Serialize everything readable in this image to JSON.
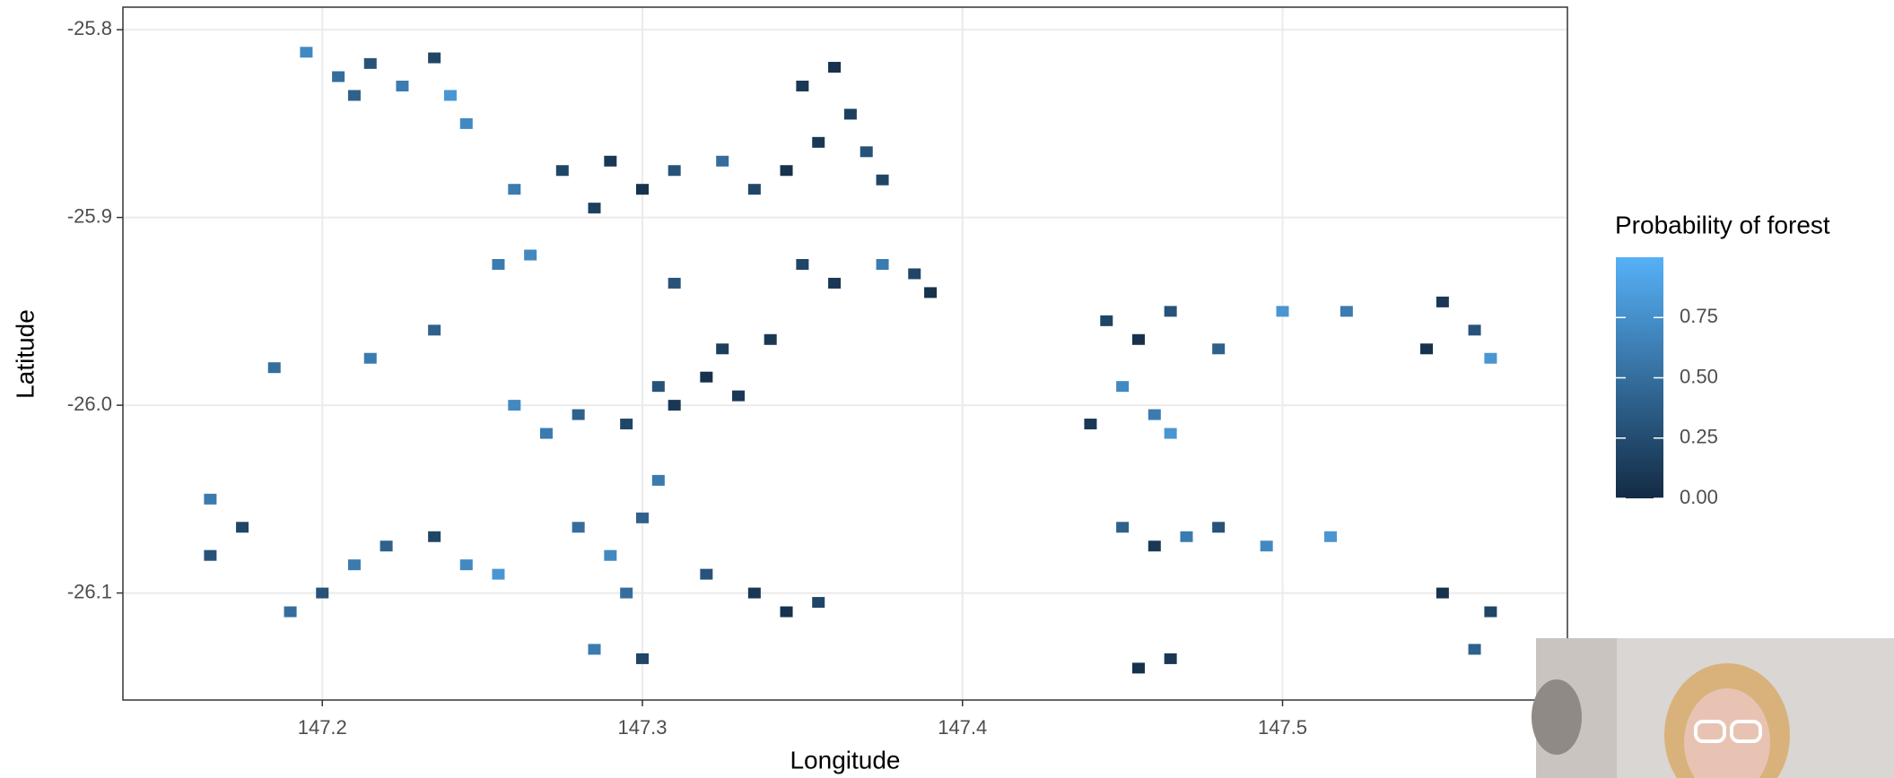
{
  "chart_data": {
    "type": "raster",
    "x_label": "Longitude",
    "y_label": "Latitude",
    "legend_title": "Probability of forest",
    "x": [
      147.195,
      147.205,
      147.215,
      147.225,
      147.235,
      147.24,
      147.21,
      147.245,
      147.35,
      147.36,
      147.365,
      147.355,
      147.37,
      147.375,
      147.345,
      147.26,
      147.275,
      147.29,
      147.3,
      147.31,
      147.325,
      147.335,
      147.285,
      147.265,
      147.255,
      147.35,
      147.36,
      147.375,
      147.385,
      147.39,
      147.34,
      147.31,
      147.215,
      147.235,
      147.185,
      147.26,
      147.27,
      147.28,
      147.295,
      147.31,
      147.32,
      147.325,
      147.33,
      147.305,
      147.445,
      147.455,
      147.465,
      147.45,
      147.46,
      147.465,
      147.44,
      147.48,
      147.5,
      147.52,
      147.55,
      147.56,
      147.565,
      147.545,
      147.2,
      147.21,
      147.22,
      147.235,
      147.245,
      147.255,
      147.19,
      147.165,
      147.165,
      147.175,
      147.28,
      147.29,
      147.3,
      147.305,
      147.295,
      147.3,
      147.285,
      147.32,
      147.335,
      147.345,
      147.355,
      147.45,
      147.46,
      147.47,
      147.48,
      147.495,
      147.515,
      147.455,
      147.465,
      147.55,
      147.565,
      147.56
    ],
    "y": [
      -25.812,
      -25.825,
      -25.818,
      -25.83,
      -25.815,
      -25.835,
      -25.835,
      -25.85,
      -25.83,
      -25.82,
      -25.845,
      -25.86,
      -25.865,
      -25.88,
      -25.875,
      -25.885,
      -25.875,
      -25.87,
      -25.885,
      -25.875,
      -25.87,
      -25.885,
      -25.895,
      -25.92,
      -25.925,
      -25.925,
      -25.935,
      -25.925,
      -25.93,
      -25.94,
      -25.965,
      -25.935,
      -25.975,
      -25.96,
      -25.98,
      -26.0,
      -26.015,
      -26.005,
      -26.01,
      -26.0,
      -25.985,
      -25.97,
      -25.995,
      -25.99,
      -25.955,
      -25.965,
      -25.95,
      -25.99,
      -26.005,
      -26.015,
      -26.01,
      -25.97,
      -25.95,
      -25.95,
      -25.945,
      -25.96,
      -25.975,
      -25.97,
      -26.1,
      -26.085,
      -26.075,
      -26.07,
      -26.085,
      -26.09,
      -26.11,
      -26.05,
      -26.08,
      -26.065,
      -26.065,
      -26.08,
      -26.06,
      -26.04,
      -26.1,
      -26.135,
      -26.13,
      -26.09,
      -26.1,
      -26.11,
      -26.105,
      -26.065,
      -26.075,
      -26.07,
      -26.065,
      -26.075,
      -26.07,
      -26.14,
      -26.135,
      -26.1,
      -26.11,
      -26.13
    ],
    "values": [
      0.7,
      0.5,
      0.3,
      0.6,
      0.2,
      0.8,
      0.4,
      0.7,
      0.1,
      0.05,
      0.15,
      0.1,
      0.3,
      0.2,
      0.05,
      0.6,
      0.2,
      0.1,
      0.05,
      0.3,
      0.5,
      0.2,
      0.15,
      0.7,
      0.6,
      0.2,
      0.1,
      0.6,
      0.2,
      0.05,
      0.1,
      0.3,
      0.6,
      0.4,
      0.5,
      0.7,
      0.6,
      0.4,
      0.2,
      0.1,
      0.05,
      0.15,
      0.1,
      0.3,
      0.2,
      0.05,
      0.3,
      0.7,
      0.6,
      0.8,
      0.1,
      0.4,
      0.8,
      0.6,
      0.1,
      0.3,
      0.8,
      0.05,
      0.3,
      0.6,
      0.4,
      0.2,
      0.7,
      0.8,
      0.5,
      0.6,
      0.3,
      0.2,
      0.5,
      0.7,
      0.4,
      0.6,
      0.5,
      0.2,
      0.6,
      0.3,
      0.1,
      0.05,
      0.2,
      0.4,
      0.1,
      0.6,
      0.3,
      0.7,
      0.8,
      0.05,
      0.1,
      0.05,
      0.2,
      0.4
    ],
    "xlim": [
      147.1377,
      147.589
    ],
    "ylim": [
      -26.157,
      -25.788
    ],
    "xticks": [
      147.2,
      147.3,
      147.4,
      147.5
    ],
    "yticks": [
      -25.8,
      -25.9,
      {
        "value": -26,
        "label": "-26.0"
      },
      -26.1
    ],
    "fill_lim": [
      0,
      1
    ],
    "fill_ticks": [
      {
        "value": 0,
        "label": "0.00"
      },
      {
        "value": 0.25,
        "label": "0.25"
      },
      {
        "value": 0.5,
        "label": "0.50"
      },
      {
        "value": 0.75,
        "label": "0.75"
      }
    ],
    "low_color": "#132B43",
    "high_color": "#56B1F7",
    "grid": true
  }
}
